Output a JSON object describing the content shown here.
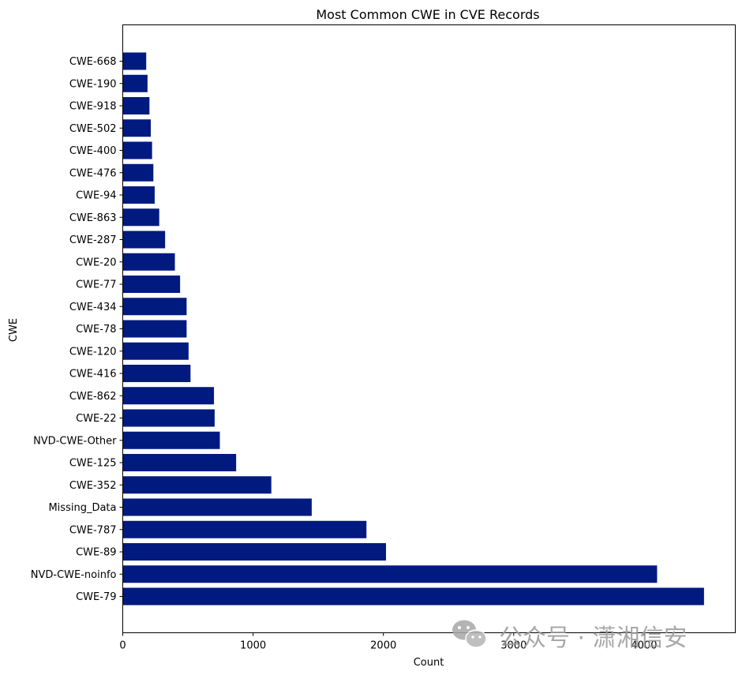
{
  "chart_data": {
    "type": "bar",
    "orientation": "horizontal",
    "title": "Most Common CWE in CVE Records",
    "xlabel": "Count",
    "ylabel": "CWE",
    "xlim": [
      0,
      4700
    ],
    "xticks": [
      0,
      1000,
      2000,
      3000,
      4000
    ],
    "grid": false,
    "bar_color": "#001a80",
    "categories": [
      "CWE-79",
      "NVD-CWE-noinfo",
      "CWE-89",
      "CWE-787",
      "Missing_Data",
      "CWE-352",
      "CWE-125",
      "NVD-CWE-Other",
      "CWE-22",
      "CWE-862",
      "CWE-416",
      "CWE-120",
      "CWE-78",
      "CWE-434",
      "CWE-77",
      "CWE-20",
      "CWE-287",
      "CWE-863",
      "CWE-94",
      "CWE-476",
      "CWE-400",
      "CWE-502",
      "CWE-918",
      "CWE-190",
      "CWE-668"
    ],
    "values": [
      4460,
      4100,
      2020,
      1870,
      1450,
      1140,
      870,
      745,
      705,
      700,
      520,
      505,
      490,
      490,
      440,
      400,
      325,
      280,
      245,
      235,
      225,
      215,
      205,
      190,
      180
    ]
  },
  "watermark": {
    "text": "公众号 · 潇湘信安",
    "icon": "wechat-icon",
    "color": "#9a9a9a"
  }
}
